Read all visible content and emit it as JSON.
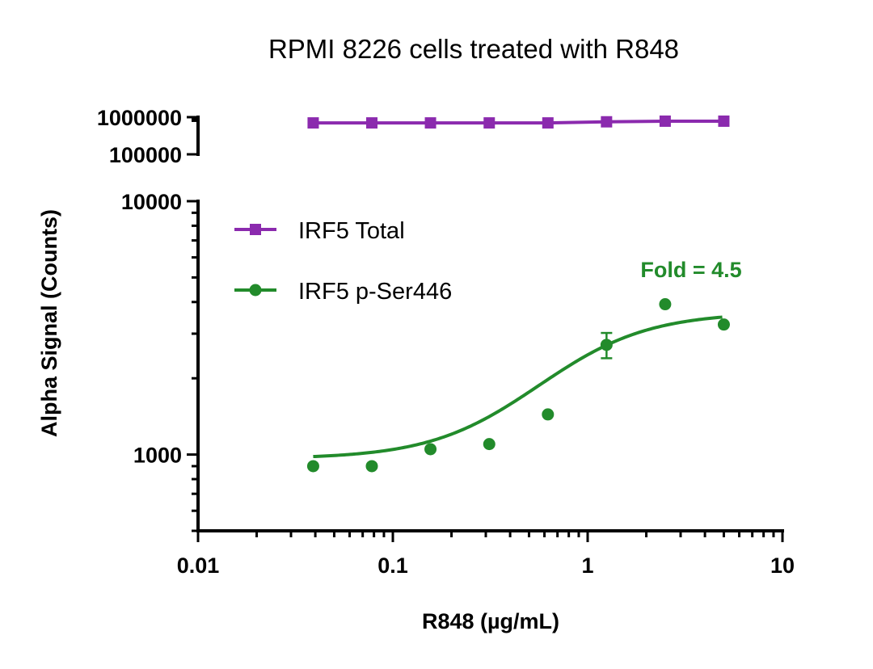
{
  "chart_data": {
    "type": "scatter",
    "title": "RPMI 8226 cells treated with R848",
    "xlabel": "R848 (µg/mL)",
    "ylabel": "Alpha Signal (Counts)",
    "x_scale": "log",
    "y_scale": "log",
    "y_axis_split": true,
    "xlim": [
      0.01,
      10
    ],
    "x_ticks": [
      "0.01",
      "0.1",
      "1",
      "10"
    ],
    "ylim_lower": [
      500,
      10000
    ],
    "y_ticks_lower": [
      "1000",
      "10000"
    ],
    "ylim_upper": [
      100000,
      1000000
    ],
    "y_ticks_upper": [
      "100000",
      "1000000"
    ],
    "grid": false,
    "legend_position": "top-left",
    "annotation": "Fold = 4.5",
    "series": [
      {
        "name": "IRF5 Total",
        "color": "#8B2AAE",
        "marker": "square",
        "x": [
          0.039,
          0.078,
          0.156,
          0.3125,
          0.625,
          1.25,
          2.5,
          5
        ],
        "y": [
          700000,
          700000,
          700000,
          700000,
          700000,
          750000,
          780000,
          780000
        ]
      },
      {
        "name": "IRF5 p-Ser446",
        "color": "#228B2B",
        "marker": "circle",
        "x": [
          0.039,
          0.078,
          0.156,
          0.3125,
          0.625,
          1.25,
          2.5,
          5
        ],
        "y": [
          900,
          900,
          1050,
          1100,
          1440,
          2710,
          3920,
          3260
        ],
        "error": [
          null,
          null,
          null,
          null,
          null,
          310,
          null,
          null
        ],
        "fit": {
          "model": "4PL",
          "bottom": 963,
          "top": 3640,
          "ec50": 0.85,
          "hill": 1.6
        }
      }
    ]
  }
}
